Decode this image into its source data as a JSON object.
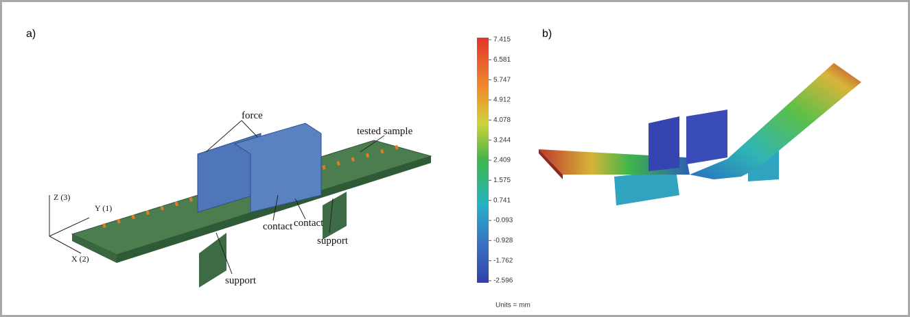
{
  "panels": {
    "a": {
      "label": "a)",
      "annotations": {
        "force": "force",
        "tested_sample": "tested sample",
        "contact_1": "contact",
        "contact_2": "contact",
        "support_1": "support",
        "support_2": "support"
      },
      "axes": {
        "z": "Z (3)",
        "y": "Y (1)",
        "x": "X (2)"
      }
    },
    "b": {
      "label": "b)"
    }
  },
  "colorbar": {
    "ticks": [
      7.415,
      6.581,
      5.747,
      4.912,
      4.078,
      3.244,
      2.409,
      1.575,
      0.741,
      -0.093,
      -0.928,
      -1.762,
      -2.596
    ],
    "units": "Units = mm"
  }
}
